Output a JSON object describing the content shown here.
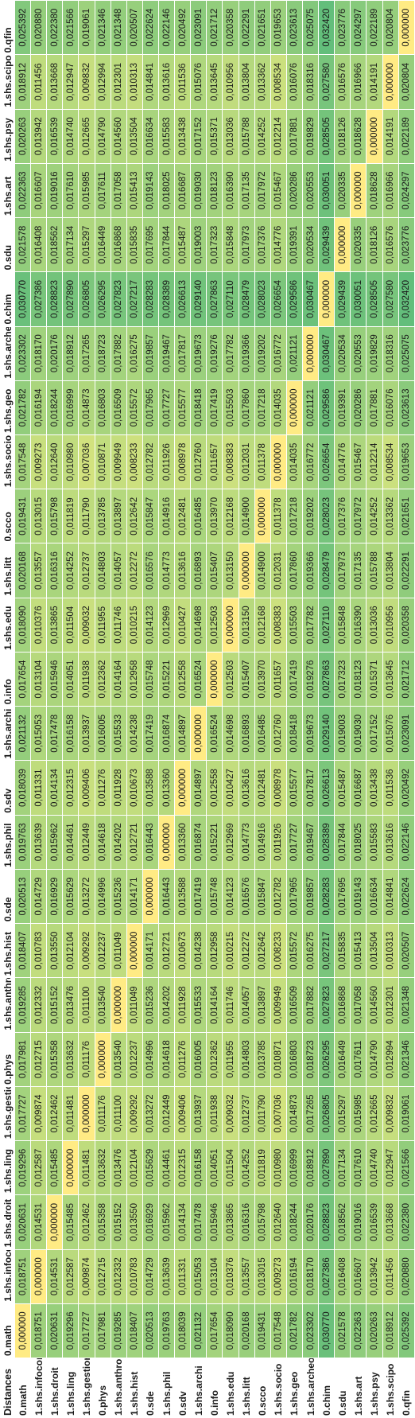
{
  "corner_label": "Distances",
  "labels": [
    "0.math",
    "1.shs.infocom",
    "1.shs.droit",
    "1.shs.ling",
    "1.shs.gestion",
    "0.phys",
    "1.shs.anthro",
    "1.shs.hist",
    "0.sde",
    "1.shs.phil",
    "0.sdv",
    "1.shs.archi",
    "0.info",
    "1.shs.edu",
    "1.shs.litt",
    "0.scco",
    "1.shs.socio",
    "1.shs.geo",
    "1.shs.archeo",
    "0.chim",
    "0.sdu",
    "1.shs.art",
    "1.shs.psy",
    "1.shs.scipo",
    "0.qfin"
  ],
  "rows": [
    [
      "0,000000",
      "0,018751",
      "0,020631",
      "0,019296",
      "0,017727",
      "0,017981",
      "0,019285",
      "0,018407",
      "0,020513",
      "0,019763",
      "0,018039",
      "0,021132",
      "0,017654",
      "0,018090",
      "0,020168",
      "0,019431",
      "0,017548",
      "0,021782",
      "0,023302",
      "0,030770",
      "0,021578",
      "0,022363",
      "0,020263",
      "0,018912",
      "0,025392"
    ],
    [
      "0,018751",
      "0,000000",
      "0,014531",
      "0,012587",
      "0,009874",
      "0,012715",
      "0,012332",
      "0,010783",
      "0,014729",
      "0,013639",
      "0,011331",
      "0,015053",
      "0,013104",
      "0,010376",
      "0,013557",
      "0,013015",
      "0,009273",
      "0,016194",
      "0,018170",
      "0,027386",
      "0,016408",
      "0,016607",
      "0,013942",
      "0,011456",
      "0,020880"
    ],
    [
      "0,020631",
      "0,014531",
      "0,000000",
      "0,015485",
      "0,012462",
      "0,015358",
      "0,015152",
      "0,013550",
      "0,016929",
      "0,015962",
      "0,014134",
      "0,017478",
      "0,015946",
      "0,013865",
      "0,016316",
      "0,015798",
      "0,012640",
      "0,018244",
      "0,020176",
      "0,028823",
      "0,018562",
      "0,019016",
      "0,016539",
      "0,013668",
      "0,022380"
    ],
    [
      "0,019296",
      "0,012587",
      "0,015485",
      "0,000000",
      "0,011481",
      "0,013632",
      "0,013476",
      "0,012104",
      "0,015629",
      "0,014461",
      "0,012315",
      "0,016158",
      "0,014051",
      "0,011504",
      "0,014252",
      "0,011819",
      "0,010980",
      "0,016999",
      "0,018912",
      "0,027890",
      "0,017134",
      "0,017610",
      "0,014740",
      "0,012947",
      "0,021566"
    ],
    [
      "0,017727",
      "0,009874",
      "0,012462",
      "0,011481",
      "0,000000",
      "0,011176",
      "0,011100",
      "0,009292",
      "0,013272",
      "0,012449",
      "0,009406",
      "0,013937",
      "0,011938",
      "0,009032",
      "0,012737",
      "0,011790",
      "0,007036",
      "0,014873",
      "0,017265",
      "0,026805",
      "0,015297",
      "0,015985",
      "0,012665",
      "0,009832",
      "0,019061"
    ],
    [
      "0,017981",
      "0,012715",
      "0,015358",
      "0,013632",
      "0,011176",
      "0,000000",
      "0,013540",
      "0,012237",
      "0,014996",
      "0,014618",
      "0,011276",
      "0,016005",
      "0,012362",
      "0,011955",
      "0,014803",
      "0,013785",
      "0,010871",
      "0,016803",
      "0,018723",
      "0,026295",
      "0,016449",
      "0,017611",
      "0,014790",
      "0,012994",
      "0,021346"
    ],
    [
      "0,019285",
      "0,012332",
      "0,015152",
      "0,013476",
      "0,011100",
      "0,013540",
      "0,000000",
      "0,011049",
      "0,015236",
      "0,014202",
      "0,011928",
      "0,015533",
      "0,014164",
      "0,011746",
      "0,014057",
      "0,013897",
      "0,009949",
      "0,016509",
      "0,017882",
      "0,027823",
      "0,016868",
      "0,017058",
      "0,014560",
      "0,012301",
      "0,021348"
    ],
    [
      "0,018407",
      "0,010783",
      "0,013550",
      "0,012104",
      "0,009292",
      "0,012237",
      "0,011049",
      "0,000000",
      "0,014171",
      "0,012721",
      "0,010673",
      "0,014238",
      "0,012958",
      "0,010215",
      "0,012272",
      "0,012642",
      "0,008233",
      "0,015572",
      "0,016275",
      "0,027217",
      "0,015835",
      "0,015413",
      "0,013504",
      "0,010313",
      "0,020507"
    ],
    [
      "0,020513",
      "0,014729",
      "0,016929",
      "0,015629",
      "0,013272",
      "0,014996",
      "0,015236",
      "0,014171",
      "0,000000",
      "0,016443",
      "0,013588",
      "0,017419",
      "0,015748",
      "0,014123",
      "0,016576",
      "0,015847",
      "0,012782",
      "0,017965",
      "0,019857",
      "0,028283",
      "0,017695",
      "0,019143",
      "0,016634",
      "0,014841",
      "0,022624"
    ],
    [
      "0,019763",
      "0,013639",
      "0,015962",
      "0,014461",
      "0,012449",
      "0,014618",
      "0,014202",
      "0,012721",
      "0,016443",
      "0,000000",
      "0,013360",
      "0,016874",
      "0,015221",
      "0,012969",
      "0,014773",
      "0,014916",
      "0,011926",
      "0,017727",
      "0,019467",
      "0,028389",
      "0,017844",
      "0,018025",
      "0,015583",
      "0,013616",
      "0,022146"
    ],
    [
      "0,018039",
      "0,011331",
      "0,014134",
      "0,012315",
      "0,009406",
      "0,011276",
      "0,011928",
      "0,010673",
      "0,013588",
      "0,013360",
      "0,000000",
      "0,014897",
      "0,012558",
      "0,010427",
      "0,013616",
      "0,012481",
      "0,008978",
      "0,015577",
      "0,017817",
      "0,026613",
      "0,015487",
      "0,016687",
      "0,013438",
      "0,011536",
      "0,020492"
    ],
    [
      "0,021132",
      "0,015053",
      "0,017478",
      "0,016158",
      "0,013937",
      "0,016005",
      "0,015533",
      "0,014238",
      "0,017419",
      "0,016874",
      "0,014897",
      "0,000000",
      "0,016524",
      "0,014698",
      "0,016893",
      "0,016485",
      "0,012760",
      "0,018418",
      "0,019673",
      "0,029140",
      "0,019003",
      "0,019030",
      "0,017152",
      "0,015076",
      "0,023091"
    ],
    [
      "0,017654",
      "0,013104",
      "0,015946",
      "0,014051",
      "0,011938",
      "0,012362",
      "0,014164",
      "0,012958",
      "0,015748",
      "0,015221",
      "0,012558",
      "0,016524",
      "0,000000",
      "0,012503",
      "0,015407",
      "0,013970",
      "0,011657",
      "0,017419",
      "0,019276",
      "0,027863",
      "0,017323",
      "0,018123",
      "0,015371",
      "0,013645",
      "0,021712"
    ],
    [
      "0,018090",
      "0,010376",
      "0,013865",
      "0,011504",
      "0,009032",
      "0,011955",
      "0,011746",
      "0,010215",
      "0,014123",
      "0,012969",
      "0,010427",
      "0,014698",
      "0,012503",
      "0,000000",
      "0,013150",
      "0,012168",
      "0,008383",
      "0,015503",
      "0,017782",
      "0,027110",
      "0,015848",
      "0,016390",
      "0,013036",
      "0,010956",
      "0,020358"
    ],
    [
      "0,020168",
      "0,013557",
      "0,016316",
      "0,014252",
      "0,012737",
      "0,014803",
      "0,014057",
      "0,012272",
      "0,016576",
      "0,014773",
      "0,013616",
      "0,016893",
      "0,015407",
      "0,013150",
      "0,000000",
      "0,014900",
      "0,012031",
      "0,017860",
      "0,019366",
      "0,028479",
      "0,017973",
      "0,017135",
      "0,015788",
      "0,013804",
      "0,022291"
    ],
    [
      "0,019431",
      "0,013015",
      "0,015798",
      "0,011819",
      "0,011790",
      "0,013785",
      "0,013897",
      "0,012642",
      "0,015847",
      "0,014916",
      "0,012481",
      "0,016485",
      "0,013970",
      "0,012168",
      "0,014900",
      "0,000000",
      "0,011378",
      "0,017218",
      "0,019202",
      "0,028023",
      "0,017376",
      "0,017972",
      "0,014252",
      "0,013362",
      "0,021651"
    ],
    [
      "0,017548",
      "0,009273",
      "0,012640",
      "0,010980",
      "0,007036",
      "0,010871",
      "0,009949",
      "0,008233",
      "0,012782",
      "0,011926",
      "0,008978",
      "0,012760",
      "0,011657",
      "0,008383",
      "0,012031",
      "0,011378",
      "0,000000",
      "0,014035",
      "0,016772",
      "0,026654",
      "0,014776",
      "0,015467",
      "0,012214",
      "0,008534",
      "0,019653"
    ],
    [
      "0,021782",
      "0,016194",
      "0,018244",
      "0,016999",
      "0,014873",
      "0,016803",
      "0,016509",
      "0,015572",
      "0,017965",
      "0,017727",
      "0,015577",
      "0,018418",
      "0,017419",
      "0,015503",
      "0,017860",
      "0,017218",
      "0,014035",
      "0,000000",
      "0,021121",
      "0,029586",
      "0,019391",
      "0,020286",
      "0,017881",
      "0,016076",
      "0,023613"
    ],
    [
      "0,023302",
      "0,018170",
      "0,020176",
      "0,018912",
      "0,017265",
      "0,018723",
      "0,017882",
      "0,016275",
      "0,019857",
      "0,019467",
      "0,017817",
      "0,019673",
      "0,019276",
      "0,017782",
      "0,019366",
      "0,019202",
      "0,016772",
      "0,021121",
      "0,000000",
      "0,030467",
      "0,020534",
      "0,020553",
      "0,019829",
      "0,018316",
      "0,025075"
    ],
    [
      "0,030770",
      "0,027386",
      "0,028823",
      "0,027890",
      "0,026805",
      "0,026295",
      "0,027823",
      "0,027217",
      "0,028283",
      "0,028389",
      "0,026613",
      "0,029140",
      "0,027863",
      "0,027110",
      "0,028479",
      "0,028023",
      "0,026654",
      "0,029586",
      "0,030467",
      "0,000000",
      "0,029439",
      "0,030051",
      "0,028505",
      "0,027580",
      "0,032420"
    ],
    [
      "0,021578",
      "0,016408",
      "0,018562",
      "0,017134",
      "0,015297",
      "0,016449",
      "0,016868",
      "0,015835",
      "0,017695",
      "0,017844",
      "0,015487",
      "0,019003",
      "0,017323",
      "0,015848",
      "0,017973",
      "0,017376",
      "0,014776",
      "0,019391",
      "0,020534",
      "0,029439",
      "0,000000",
      "0,020335",
      "0,018126",
      "0,016576",
      "0,023776"
    ],
    [
      "0,022363",
      "0,016607",
      "0,019016",
      "0,017610",
      "0,015985",
      "0,017611",
      "0,017058",
      "0,015413",
      "0,019143",
      "0,018025",
      "0,016687",
      "0,019030",
      "0,018123",
      "0,016390",
      "0,017135",
      "0,017972",
      "0,015467",
      "0,020286",
      "0,020553",
      "0,030051",
      "0,020335",
      "0,000000",
      "0,018628",
      "0,016966",
      "0,024297"
    ],
    [
      "0,020263",
      "0,013942",
      "0,016539",
      "0,014740",
      "0,012665",
      "0,014790",
      "0,014560",
      "0,013504",
      "0,016634",
      "0,015583",
      "0,013438",
      "0,017152",
      "0,015371",
      "0,013036",
      "0,015788",
      "0,014252",
      "0,012214",
      "0,017881",
      "0,019829",
      "0,028505",
      "0,018126",
      "0,018628",
      "0,000000",
      "0,014191",
      "0,022189"
    ],
    [
      "0,018912",
      "0,011456",
      "0,013668",
      "0,012947",
      "0,009832",
      "0,012994",
      "0,012301",
      "0,010313",
      "0,014841",
      "0,013616",
      "0,011536",
      "0,015076",
      "0,013645",
      "0,010956",
      "0,013804",
      "0,013362",
      "0,008534",
      "0,016076",
      "0,018316",
      "0,027580",
      "0,016576",
      "0,016966",
      "0,014191",
      "0,000000",
      "0,020804"
    ],
    [
      "0,025392",
      "0,020880",
      "0,022380",
      "0,021566",
      "0,019061",
      "0,021346",
      "0,021348",
      "0,020507",
      "0,022624",
      "0,022146",
      "0,020492",
      "0,023091",
      "0,021712",
      "0,020358",
      "0,022291",
      "0,021651",
      "0,019653",
      "0,023613",
      "0,025075",
      "0,032420",
      "0,023776",
      "0,024297",
      "0,022189",
      "0,020804",
      "0,000000"
    ]
  ],
  "colors": {
    "zero": "#ffeb84",
    "low": "#d2e27e",
    "high": "#63be7b"
  }
}
